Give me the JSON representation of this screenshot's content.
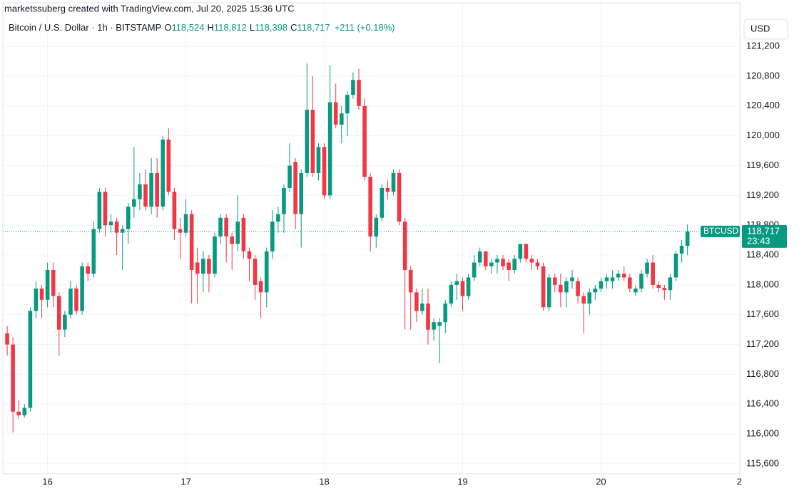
{
  "chart_data": {
    "type": "candlestick",
    "caption": "marketssuberg created with TradingView.com, Jul 20, 2025 15:36 UTC",
    "symbol": "Bitcoin / U.S. Dollar · 1h · BITSTAMP",
    "legend_values": [
      {
        "key": "O",
        "value": "118,524"
      },
      {
        "key": "H",
        "value": "118,812"
      },
      {
        "key": "L",
        "value": "118,398"
      },
      {
        "key": "C",
        "value": "118,717"
      }
    ],
    "change": "+211 (+0.18%)",
    "currency": "USD",
    "ticker": "BTCUSD",
    "last_price_label": "118,717",
    "countdown": "23:43",
    "up_color": "#089981",
    "down_color": "#f23645",
    "grid": true,
    "open": [
      117350,
      117200,
      116300,
      116250,
      116350,
      117650,
      117950,
      117800,
      118200,
      117850,
      117400,
      117600,
      117950,
      117650,
      118250,
      118150,
      118750,
      119250,
      118800,
      118850,
      118700,
      118750,
      119050,
      119150,
      119350,
      119050,
      119500,
      119050,
      119950,
      119250,
      118750,
      118700,
      118950,
      118300,
      118150,
      118350,
      118150,
      118650,
      118900,
      118650,
      118550,
      118900,
      118450,
      118350,
      118050,
      117900,
      118450,
      118850,
      118950,
      119300,
      119650,
      118950,
      119500,
      120350,
      119500,
      119850,
      119200,
      120450,
      120150,
      120300,
      120550,
      120750,
      120400,
      119450,
      118650,
      118900,
      119300,
      119250,
      119500,
      118850,
      118200,
      117900,
      117650,
      117750,
      117400,
      117450,
      117500,
      117750,
      118000,
      118050,
      117850,
      118100,
      118300,
      118450,
      118250,
      118300,
      118350,
      118300,
      118200,
      118350,
      118550,
      118350,
      118300,
      118250,
      117700,
      118100,
      118000,
      117900,
      118050,
      118050,
      117850,
      117750,
      117900,
      117950,
      118050,
      118050,
      118100,
      118150,
      118100,
      117900,
      117950,
      118150,
      118300,
      118000,
      117960,
      117930,
      118100,
      118420,
      118524
    ],
    "high": [
      117450,
      117300,
      116450,
      116400,
      117700,
      118050,
      118000,
      118300,
      118300,
      117900,
      117650,
      118050,
      118000,
      118300,
      118300,
      118850,
      119300,
      119300,
      118950,
      118900,
      118800,
      119100,
      119850,
      119500,
      119550,
      119700,
      119700,
      120000,
      120100,
      119300,
      118900,
      119150,
      119000,
      118500,
      118450,
      118400,
      118700,
      118950,
      118950,
      118700,
      119200,
      118950,
      118500,
      118400,
      118100,
      118500,
      119000,
      119050,
      119350,
      119900,
      119700,
      119550,
      120970,
      120800,
      119900,
      119900,
      120950,
      120700,
      120400,
      120600,
      120850,
      120900,
      120500,
      119500,
      118950,
      119350,
      119400,
      119550,
      119550,
      118900,
      118250,
      117950,
      117950,
      117950,
      117550,
      117550,
      117800,
      118050,
      118150,
      118100,
      118150,
      118400,
      118500,
      118450,
      118350,
      118400,
      118400,
      118350,
      118400,
      118550,
      118550,
      118400,
      118350,
      118300,
      118150,
      118150,
      118150,
      118100,
      118200,
      118100,
      117900,
      117950,
      118000,
      118100,
      118150,
      118200,
      118200,
      118250,
      118150,
      118000,
      118200,
      118350,
      118400,
      118050,
      118000,
      118150,
      118450,
      118600,
      118812
    ],
    "low": [
      117050,
      116020,
      116200,
      116220,
      116300,
      117550,
      117550,
      117700,
      117700,
      117050,
      117300,
      117550,
      117600,
      117600,
      118050,
      118100,
      118700,
      118650,
      118700,
      118400,
      118200,
      118550,
      118900,
      119000,
      119000,
      118950,
      118900,
      119000,
      119200,
      118600,
      118350,
      118650,
      117750,
      117750,
      117900,
      117900,
      118100,
      118550,
      118300,
      118200,
      118450,
      118350,
      118050,
      117800,
      117550,
      117700,
      118350,
      118700,
      118700,
      119250,
      118750,
      118500,
      119450,
      119450,
      119400,
      119150,
      119150,
      120100,
      119900,
      120000,
      120500,
      120350,
      119400,
      118450,
      118500,
      118850,
      119150,
      119200,
      118800,
      117400,
      117400,
      117500,
      117600,
      117200,
      117250,
      116950,
      117350,
      117700,
      117800,
      117650,
      117800,
      118050,
      118250,
      118200,
      118150,
      118150,
      118200,
      118050,
      118150,
      118300,
      118300,
      118200,
      118200,
      117650,
      117650,
      117900,
      117700,
      117700,
      117950,
      117750,
      117350,
      117600,
      117800,
      117900,
      117950,
      117950,
      118050,
      118050,
      117900,
      117850,
      117900,
      118100,
      117950,
      117900,
      117800,
      117800,
      118050,
      118300,
      118398
    ],
    "close": [
      117200,
      116300,
      116250,
      116350,
      117650,
      117950,
      117800,
      118200,
      117850,
      117400,
      117600,
      117950,
      117650,
      118250,
      118150,
      118750,
      119250,
      118800,
      118850,
      118700,
      118750,
      119050,
      119150,
      119350,
      119050,
      119500,
      119050,
      119950,
      119250,
      118750,
      118700,
      118950,
      118200,
      118150,
      118350,
      118150,
      118650,
      118900,
      118650,
      118550,
      118850,
      118450,
      118350,
      118000,
      117900,
      118450,
      118850,
      118950,
      119300,
      119600,
      118950,
      119500,
      120350,
      119500,
      119850,
      119200,
      120450,
      120150,
      120300,
      120550,
      120750,
      120400,
      119450,
      118650,
      118900,
      119300,
      119250,
      119500,
      118850,
      118200,
      117900,
      117650,
      117750,
      117400,
      117500,
      117500,
      117750,
      118000,
      118050,
      117850,
      118100,
      118300,
      118450,
      118250,
      118300,
      118350,
      118250,
      118200,
      118350,
      118550,
      118350,
      118300,
      118250,
      117700,
      118100,
      118000,
      117900,
      118050,
      118100,
      117850,
      117750,
      117900,
      117950,
      118050,
      118100,
      118100,
      118150,
      118100,
      117950,
      117950,
      118150,
      118300,
      118000,
      117960,
      117930,
      118100,
      118420,
      118524,
      118717
    ],
    "xlim": [
      -0.75,
      127.2
    ],
    "xticks": [
      {
        "value": 7,
        "label": "16"
      },
      {
        "value": 31,
        "label": "17"
      },
      {
        "value": 55,
        "label": "18"
      },
      {
        "value": 79,
        "label": "19"
      },
      {
        "value": 103,
        "label": "20"
      },
      {
        "value": 127,
        "label": "2"
      }
    ],
    "ylim": [
      115466,
      121784
    ],
    "yticks": [
      {
        "value": 115600,
        "label": "115,600"
      },
      {
        "value": 116000,
        "label": "116,000"
      },
      {
        "value": 116400,
        "label": "116,400"
      },
      {
        "value": 116800,
        "label": "116,800"
      },
      {
        "value": 117200,
        "label": "117,200"
      },
      {
        "value": 117600,
        "label": "117,600"
      },
      {
        "value": 118000,
        "label": "118,000"
      },
      {
        "value": 118400,
        "label": "118,400"
      },
      {
        "value": 118800,
        "label": "118,800"
      },
      {
        "value": 119200,
        "label": "119,200"
      },
      {
        "value": 119600,
        "label": "119,600"
      },
      {
        "value": 120000,
        "label": "120,000"
      },
      {
        "value": 120400,
        "label": "120,400"
      },
      {
        "value": 120800,
        "label": "120,800"
      },
      {
        "value": 121200,
        "label": "121,200"
      }
    ]
  }
}
